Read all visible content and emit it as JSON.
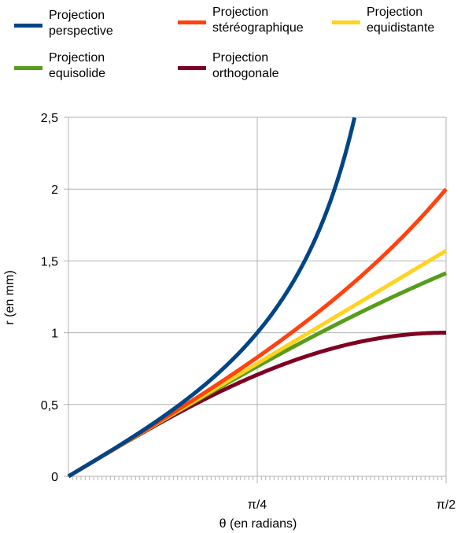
{
  "chart_data": {
    "type": "line",
    "xlabel": "θ (en radians)",
    "ylabel": "r (en mm)",
    "xlim": [
      0,
      1.5708
    ],
    "ylim": [
      0,
      2.5
    ],
    "x_ticks": [
      {
        "value": 0.7854,
        "label": "π/4"
      },
      {
        "value": 1.5708,
        "label": "π/2"
      }
    ],
    "y_ticks": [
      {
        "value": 0,
        "label": "0"
      },
      {
        "value": 0.5,
        "label": "0,5"
      },
      {
        "value": 1,
        "label": "1"
      },
      {
        "value": 1.5,
        "label": "1,5"
      },
      {
        "value": 2,
        "label": "2"
      },
      {
        "value": 2.5,
        "label": "2,5"
      }
    ],
    "grid": true,
    "legend_position": "top",
    "series": [
      {
        "name": "Projection perspective",
        "color": "#004586",
        "formula": "tan(θ)",
        "x": [
          0,
          0.1,
          0.2,
          0.3,
          0.4,
          0.5,
          0.6,
          0.7,
          0.8,
          0.9,
          1.0,
          1.1,
          1.19
        ],
        "y": [
          0,
          0.1,
          0.203,
          0.309,
          0.423,
          0.546,
          0.684,
          0.842,
          1.03,
          1.26,
          1.557,
          1.965,
          2.498
        ]
      },
      {
        "name": "Projection stéréographique",
        "color": "#ff420e",
        "formula": "2·tan(θ/2)",
        "x": [
          0,
          0.2,
          0.4,
          0.6,
          0.8,
          1.0,
          1.2,
          1.4,
          1.5708
        ],
        "y": [
          0,
          0.201,
          0.405,
          0.618,
          0.845,
          1.093,
          1.371,
          1.689,
          2.0
        ]
      },
      {
        "name": "Projection equidistante",
        "color": "#ffd320",
        "formula": "θ",
        "x": [
          0,
          0.4,
          0.8,
          1.2,
          1.5708
        ],
        "y": [
          0,
          0.4,
          0.8,
          1.2,
          1.5708
        ]
      },
      {
        "name": "Projection equisolide",
        "color": "#579d1c",
        "formula": "2·sin(θ/2)",
        "x": [
          0,
          0.2,
          0.4,
          0.6,
          0.8,
          1.0,
          1.2,
          1.4,
          1.5708
        ],
        "y": [
          0,
          0.199,
          0.397,
          0.591,
          0.779,
          0.959,
          1.129,
          1.288,
          1.414
        ]
      },
      {
        "name": "Projection orthogonale",
        "color": "#7e0021",
        "formula": "sin(θ)",
        "x": [
          0,
          0.2,
          0.4,
          0.6,
          0.8,
          1.0,
          1.2,
          1.4,
          1.5708
        ],
        "y": [
          0,
          0.199,
          0.389,
          0.565,
          0.717,
          0.841,
          0.932,
          0.985,
          1.0
        ]
      }
    ]
  }
}
